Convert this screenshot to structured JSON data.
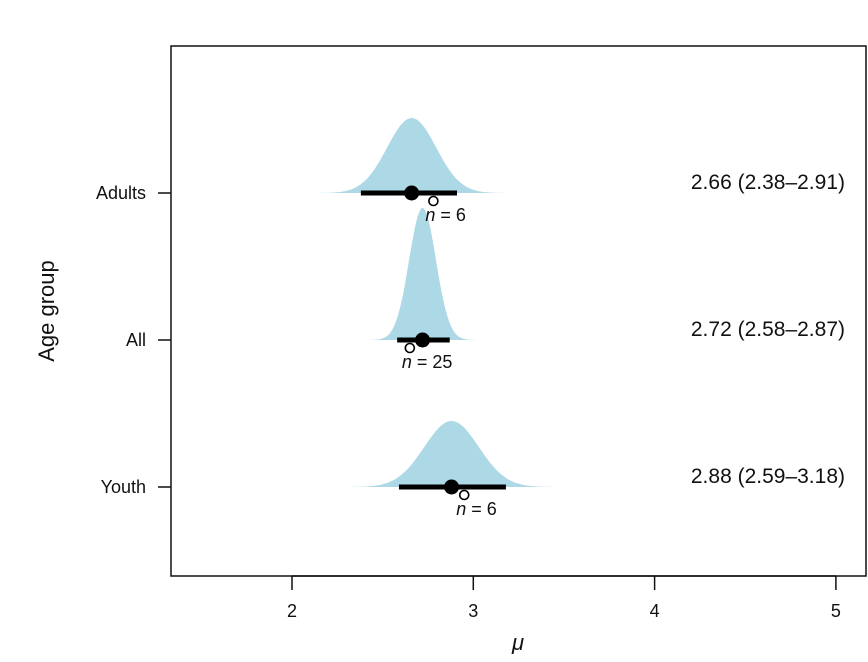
{
  "chart_data": {
    "type": "interval-density",
    "xlabel": "μ",
    "ylabel": "Age group",
    "xlim": [
      1.35,
      5.05
    ],
    "xticks": [
      "2",
      "3",
      "4",
      "5"
    ],
    "density_color": "#add8e6",
    "groups": [
      {
        "label": "Adults",
        "mean": 2.66,
        "lower": 2.38,
        "upper": 2.91,
        "observed": 2.78,
        "n": "6",
        "annotation": "2.66 (2.38–2.91)"
      },
      {
        "label": "All",
        "mean": 2.72,
        "lower": 2.58,
        "upper": 2.87,
        "observed": 2.65,
        "n": "25",
        "annotation": "2.72 (2.58–2.87)"
      },
      {
        "label": "Youth",
        "mean": 2.88,
        "lower": 2.59,
        "upper": 3.18,
        "observed": 2.95,
        "n": "6",
        "annotation": "2.88 (2.59–3.18)"
      }
    ]
  }
}
